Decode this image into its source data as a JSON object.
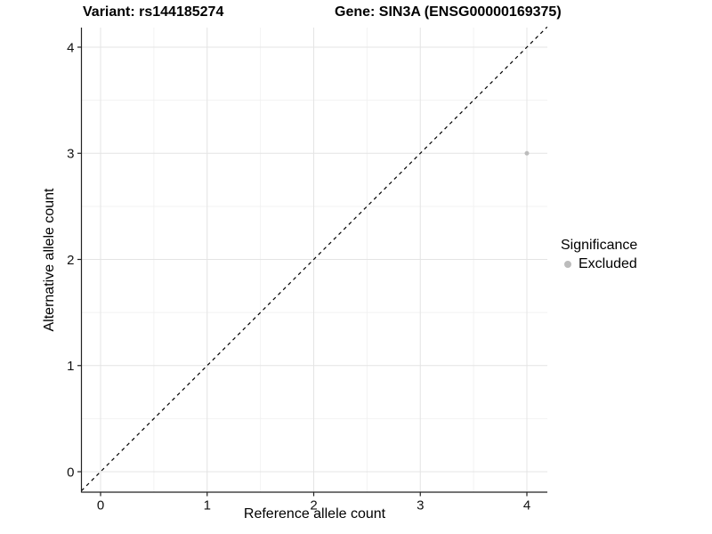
{
  "header": {
    "variant_title": "Variant: rs144185274",
    "gene_title": "Gene: SIN3A (ENSG00000169375)"
  },
  "legend": {
    "title": "Significance",
    "items": [
      {
        "label": "Excluded",
        "marker": "dot",
        "color": "#bcbcbc"
      }
    ]
  },
  "chart_data": {
    "type": "scatter",
    "xlabel": "Reference allele count",
    "ylabel": "Alternative allele count",
    "xlim": [
      -0.18,
      4.19
    ],
    "ylim": [
      -0.19,
      4.19
    ],
    "xticks": [
      0,
      1,
      2,
      3,
      4
    ],
    "yticks": [
      0,
      1,
      2,
      3,
      4
    ],
    "grid": true,
    "legend_position": "right",
    "series": [
      {
        "name": "Excluded",
        "color": "#bcbcbc",
        "points": [
          {
            "x": 4,
            "y": 3
          }
        ]
      }
    ],
    "reference_line": {
      "type": "identity",
      "style": "dashed",
      "from": [
        -0.18,
        -0.18
      ],
      "to": [
        4.19,
        4.19
      ]
    }
  },
  "colors": {
    "background": "#ffffff",
    "grid_major": "#e4e4e4",
    "grid_minor": "#f2f2f2",
    "axis": "#222222",
    "tick_text": "#111111",
    "point": "#bcbcbc"
  }
}
